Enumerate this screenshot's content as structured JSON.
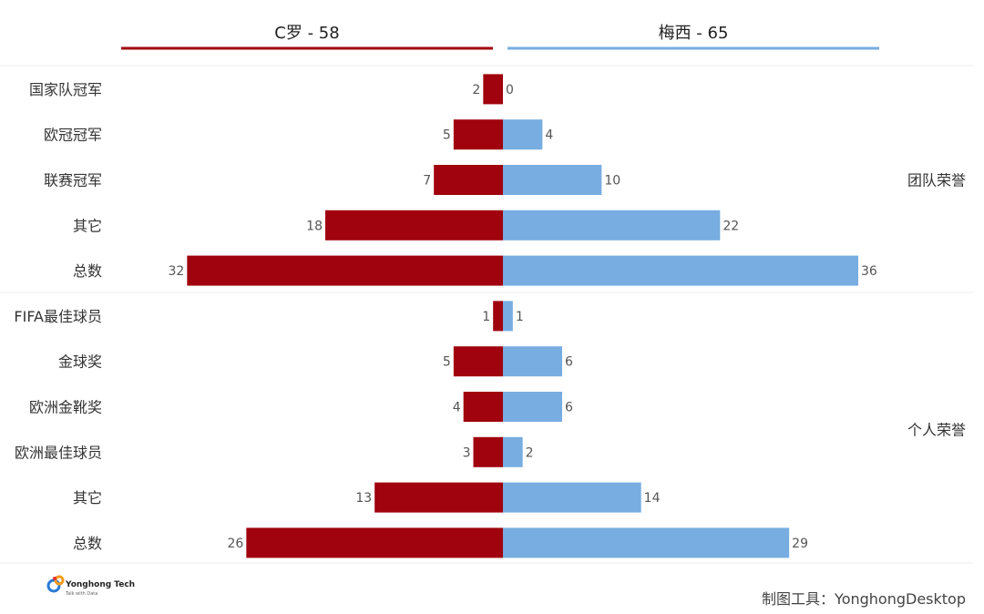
{
  "chart_data": {
    "type": "bar",
    "orientation": "diverging-horizontal",
    "series": [
      {
        "name": "C罗 - 58",
        "color": "#a0030e",
        "values": [
          2,
          5,
          7,
          18,
          32,
          1,
          5,
          4,
          3,
          13,
          26
        ]
      },
      {
        "name": "梅西 - 65",
        "color": "#77ade1",
        "values": [
          0,
          4,
          10,
          22,
          36,
          1,
          6,
          6,
          2,
          14,
          29
        ]
      }
    ],
    "categories": [
      "国家队冠军",
      "欧冠冠军",
      "联赛冠军",
      "其它",
      "总数",
      "FIFA最佳球员",
      "金球奖",
      "欧洲金靴奖",
      "欧洲最佳球员",
      "其它",
      "总数"
    ],
    "groups": [
      {
        "label": "团队荣誉",
        "start": 0,
        "end": 4
      },
      {
        "label": "个人荣誉",
        "start": 5,
        "end": 10
      }
    ],
    "xlim": [
      0,
      36
    ],
    "grid": false,
    "legend": "top"
  },
  "footer": {
    "tool_label": "制图工具：YonghongDesktop"
  },
  "logo": {
    "name": "Yonghong Tech",
    "tagline": "Talk with Data"
  }
}
